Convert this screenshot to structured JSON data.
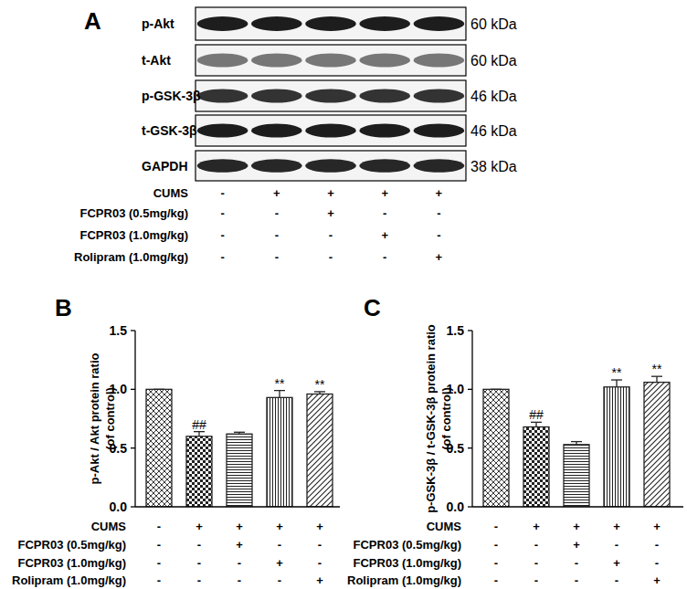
{
  "blot": {
    "panel": "A",
    "rows": [
      {
        "label": "p-Akt",
        "size": "60 kDa"
      },
      {
        "label": "t-Akt",
        "size": "60 kDa"
      },
      {
        "label": "p-GSK-3β",
        "size": "46 kDa"
      },
      {
        "label": "t-GSK-3β",
        "size": "46 kDa"
      },
      {
        "label": "GAPDH",
        "size": "38 kDa"
      }
    ],
    "treatments": [
      {
        "name": "CUMS",
        "marks": [
          "-",
          "+",
          "+",
          "+",
          "+"
        ]
      },
      {
        "name": "FCPR03 (0.5mg/kg)",
        "marks": [
          "-",
          "-",
          "+",
          "-",
          "-"
        ]
      },
      {
        "name": "FCPR03 (1.0mg/kg)",
        "marks": [
          "-",
          "-",
          "-",
          "+",
          "-"
        ]
      },
      {
        "name": "Rolipram (1.0mg/kg)",
        "marks": [
          "-",
          "-",
          "-",
          "-",
          "+"
        ]
      }
    ]
  },
  "chart_data": [
    {
      "type": "bar",
      "title": "B",
      "ylabel": [
        "p-Akt / Akt protein ratio",
        "(of control)"
      ],
      "categories": [
        null,
        null,
        null,
        null,
        null
      ],
      "values": [
        1.0,
        0.6,
        0.62,
        0.93,
        0.96
      ],
      "errors": [
        0,
        0.04,
        0.015,
        0.06,
        0.02
      ],
      "significance": [
        null,
        "##",
        null,
        "**",
        "**"
      ],
      "color": "#222222",
      "ylim": [
        0,
        1.5
      ],
      "yticks": [
        {
          "value": 0,
          "label": "0.0"
        },
        {
          "value": 0.5,
          "label": "0.5"
        },
        {
          "value": 1,
          "label": "1.0"
        },
        {
          "value": 1.5,
          "label": "1.5"
        }
      ],
      "grid": false,
      "treatments": [
        {
          "name": "CUMS",
          "marks": [
            "-",
            "+",
            "+",
            "+",
            "+"
          ]
        },
        {
          "name": "FCPR03 (0.5mg/kg)",
          "marks": [
            "-",
            "-",
            "+",
            "-",
            "-"
          ]
        },
        {
          "name": "FCPR03 (1.0mg/kg)",
          "marks": [
            "-",
            "-",
            "-",
            "+",
            "-"
          ]
        },
        {
          "name": "Rolipram (1.0mg/kg)",
          "marks": [
            "-",
            "-",
            "-",
            "-",
            "+"
          ]
        }
      ]
    },
    {
      "type": "bar",
      "title": "C",
      "ylabel": [
        "p-GSK-3β / t-GSK-3β  protein ratio",
        "(of control)"
      ],
      "categories": [
        null,
        null,
        null,
        null,
        null
      ],
      "values": [
        1.0,
        0.68,
        0.53,
        1.02,
        1.06
      ],
      "errors": [
        0,
        0.04,
        0.025,
        0.06,
        0.05
      ],
      "significance": [
        null,
        "##",
        null,
        "**",
        "**"
      ],
      "color": "#222222",
      "ylim": [
        0,
        1.5
      ],
      "yticks": [
        {
          "value": 0,
          "label": "0.0"
        },
        {
          "value": 0.5,
          "label": "0.5"
        },
        {
          "value": 1,
          "label": "1.0"
        },
        {
          "value": 1.5,
          "label": "1.5"
        }
      ],
      "grid": false,
      "treatments": [
        {
          "name": "CUMS",
          "marks": [
            "-",
            "+",
            "+",
            "+",
            "+"
          ]
        },
        {
          "name": "FCPR03 (0.5mg/kg)",
          "marks": [
            "-",
            "-",
            "+",
            "-",
            "-"
          ]
        },
        {
          "name": "FCPR03 (1.0mg/kg)",
          "marks": [
            "-",
            "-",
            "-",
            "+",
            "-"
          ]
        },
        {
          "name": "Rolipram (1.0mg/kg)",
          "marks": [
            "-",
            "-",
            "-",
            "-",
            "+"
          ]
        }
      ]
    }
  ]
}
